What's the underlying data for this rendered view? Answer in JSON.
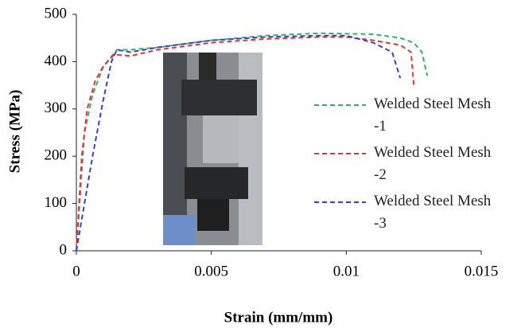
{
  "chart_data": {
    "type": "line",
    "xlabel": "Strain (mm/mm)",
    "ylabel": "Stress (MPa)",
    "xlim": [
      0,
      0.015
    ],
    "xticks": [
      0,
      0.005,
      0.01,
      0.015
    ],
    "ylim": [
      0,
      500
    ],
    "yticks": [
      0,
      100,
      200,
      300,
      400,
      500
    ],
    "dashed": true,
    "series": [
      {
        "name": "Welded Steel Mesh -1",
        "color": "#2fb46e",
        "x": [
          0,
          0.0003,
          0.0006,
          0.001,
          0.0015,
          0.002,
          0.003,
          0.005,
          0.007,
          0.009,
          0.011,
          0.012,
          0.0125,
          0.0128,
          0.013
        ],
        "values": [
          0,
          250,
          330,
          390,
          425,
          425,
          430,
          445,
          455,
          460,
          458,
          450,
          440,
          420,
          370
        ]
      },
      {
        "name": "Welded Steel Mesh -2",
        "color": "#f03030",
        "x": [
          0,
          0.0002,
          0.0004,
          0.0007,
          0.001,
          0.0014,
          0.002,
          0.003,
          0.005,
          0.007,
          0.009,
          0.01,
          0.011,
          0.012,
          0.0124,
          0.0125
        ],
        "values": [
          0,
          200,
          300,
          360,
          390,
          415,
          412,
          425,
          440,
          448,
          452,
          452,
          445,
          435,
          420,
          350
        ]
      },
      {
        "name": "Welded Steel Mesh -3",
        "color": "#3040d8",
        "x": [
          0,
          0.0003,
          0.0006,
          0.001,
          0.0013,
          0.0015,
          0.002,
          0.003,
          0.005,
          0.007,
          0.009,
          0.01,
          0.011,
          0.0117,
          0.012
        ],
        "values": [
          0,
          100,
          200,
          320,
          400,
          425,
          420,
          430,
          445,
          452,
          455,
          455,
          440,
          420,
          365
        ]
      }
    ]
  }
}
